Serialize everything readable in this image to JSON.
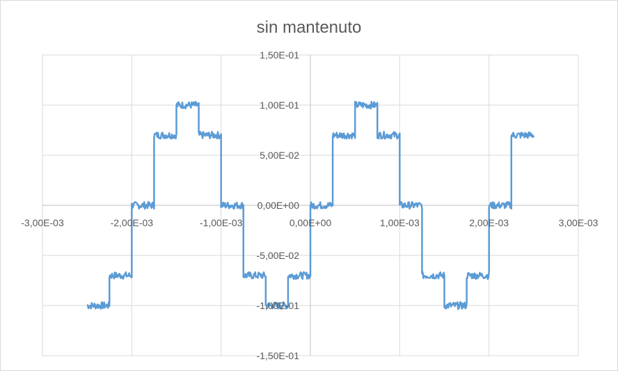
{
  "chart_data": {
    "type": "line",
    "title": "sin mantenuto",
    "xlabel": "",
    "ylabel": "",
    "xlim": [
      -0.003,
      0.003
    ],
    "ylim": [
      -0.15,
      0.15
    ],
    "grid": true,
    "legend": "none",
    "x_ticks": [
      {
        "value": -0.003,
        "label": "-3,00E-03"
      },
      {
        "value": -0.002,
        "label": "-2,00E-03"
      },
      {
        "value": -0.001,
        "label": "-1,00E-03"
      },
      {
        "value": 0,
        "label": "0,00E+00"
      },
      {
        "value": 0.001,
        "label": "1,00E-03"
      },
      {
        "value": 0.002,
        "label": "2,00E-03"
      },
      {
        "value": 0.003,
        "label": "3,00E-03"
      }
    ],
    "y_ticks": [
      {
        "value": 0.15,
        "label": "1,50E-01"
      },
      {
        "value": 0.1,
        "label": "1,00E-01"
      },
      {
        "value": 0.05,
        "label": "5,00E-02"
      },
      {
        "value": 0,
        "label": "0,00E+00"
      },
      {
        "value": -0.05,
        "label": "-5,00E-02"
      },
      {
        "value": -0.1,
        "label": "-1,00E-01"
      },
      {
        "value": -0.15,
        "label": "-1,50E-01"
      }
    ],
    "series": [
      {
        "color": "#5b9bd5",
        "steps": [
          {
            "x_start": -0.0025,
            "x_end": -0.00225,
            "y": -0.1
          },
          {
            "x_start": -0.00225,
            "x_end": -0.002,
            "y": -0.07
          },
          {
            "x_start": -0.002,
            "x_end": -0.00175,
            "y": 0.0
          },
          {
            "x_start": -0.00175,
            "x_end": -0.0015,
            "y": 0.07
          },
          {
            "x_start": -0.0015,
            "x_end": -0.00125,
            "y": 0.1
          },
          {
            "x_start": -0.00125,
            "x_end": -0.001,
            "y": 0.07
          },
          {
            "x_start": -0.001,
            "x_end": -0.00075,
            "y": 0.0
          },
          {
            "x_start": -0.00075,
            "x_end": -0.0005,
            "y": -0.07
          },
          {
            "x_start": -0.0005,
            "x_end": -0.00025,
            "y": -0.1
          },
          {
            "x_start": -0.00025,
            "x_end": 0.0,
            "y": -0.07
          },
          {
            "x_start": 0.0,
            "x_end": 0.00025,
            "y": 0.0
          },
          {
            "x_start": 0.00025,
            "x_end": 0.0005,
            "y": 0.07
          },
          {
            "x_start": 0.0005,
            "x_end": 0.00075,
            "y": 0.1
          },
          {
            "x_start": 0.00075,
            "x_end": 0.001,
            "y": 0.07
          },
          {
            "x_start": 0.001,
            "x_end": 0.00125,
            "y": 0.0
          },
          {
            "x_start": 0.00125,
            "x_end": 0.0015,
            "y": -0.07
          },
          {
            "x_start": 0.0015,
            "x_end": 0.00175,
            "y": -0.1
          },
          {
            "x_start": 0.00175,
            "x_end": 0.002,
            "y": -0.07
          },
          {
            "x_start": 0.002,
            "x_end": 0.00225,
            "y": 0.0
          },
          {
            "x_start": 0.00225,
            "x_end": 0.0025,
            "y": 0.07
          }
        ]
      }
    ]
  }
}
